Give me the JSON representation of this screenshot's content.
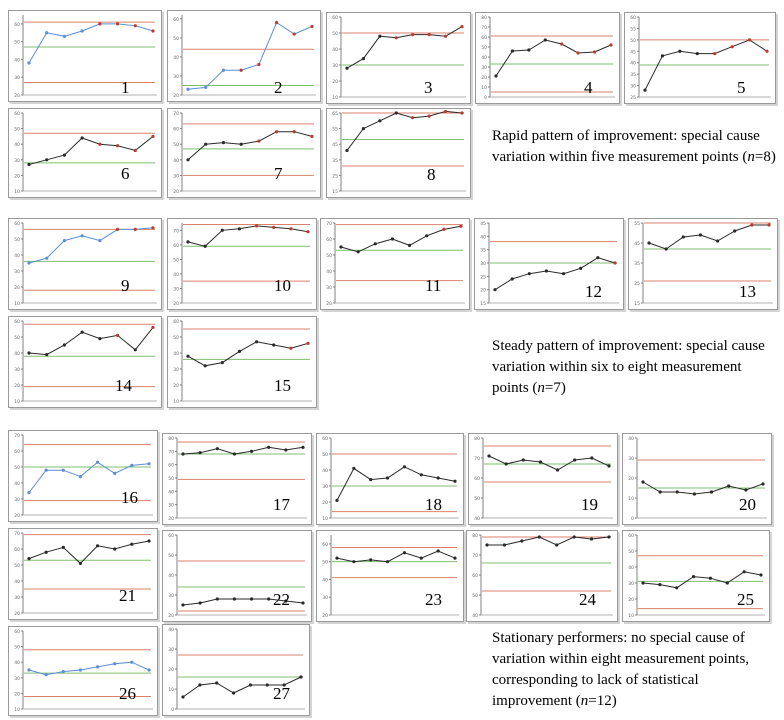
{
  "colors": {
    "upper_limit": "#d9826a",
    "center_line": "#7fbf6f",
    "lower_limit": "#d9826a",
    "series_blue": "#5a8fd6",
    "series_black": "#2a2a2a",
    "signal_point": "#c0392b"
  },
  "groups": [
    {
      "name": "rapid",
      "caption": {
        "text": "Rapid pattern of improvement: special cause variation within five measurement points (",
        "n_label": "n",
        "n_value": "=8)"
      }
    },
    {
      "name": "steady",
      "caption": {
        "text": "Steady pattern of improvement: special cause variation within six to eight measurement points (",
        "n_label": "n",
        "n_value": "=7)"
      }
    },
    {
      "name": "stationary",
      "caption": {
        "text": "Stationary performers: no special cause of variation within eight measurement points, corresponding to lack of statistical improvement (",
        "n_label": "n",
        "n_value": "=12)"
      }
    }
  ],
  "chart_data": [
    {
      "type": "line",
      "number": "1",
      "color": "blue",
      "ylim": [
        20,
        65
      ],
      "yticks": [
        "20",
        "30",
        "40",
        "50",
        "60"
      ],
      "ucl": 61,
      "cl": 47,
      "lcl": 27,
      "values": [
        38,
        55,
        53,
        56,
        60,
        60,
        59,
        56
      ],
      "signals": [
        4,
        5,
        6,
        7
      ]
    },
    {
      "type": "line",
      "number": "2",
      "color": "blue",
      "ylim": [
        20,
        62
      ],
      "yticks": [
        "20",
        "30",
        "40",
        "50",
        "60"
      ],
      "ucl": 44,
      "cl": 25,
      "lcl": null,
      "values": [
        23,
        24,
        33,
        33,
        36,
        58,
        52,
        56
      ],
      "signals": [
        3,
        4,
        5,
        6,
        7
      ]
    },
    {
      "type": "line",
      "number": "3",
      "color": "black",
      "ylim": [
        10,
        60
      ],
      "yticks": [
        "10",
        "20",
        "30",
        "40",
        "50",
        "60"
      ],
      "ucl": 50,
      "cl": 30,
      "lcl": null,
      "values": [
        28,
        34,
        48,
        47,
        49,
        49,
        48,
        54
      ],
      "signals": [
        3,
        4,
        5,
        6,
        7
      ]
    },
    {
      "type": "line",
      "number": "4",
      "color": "black",
      "ylim": [
        0,
        80
      ],
      "yticks": [
        "0",
        "10",
        "20",
        "30",
        "40",
        "50",
        "60",
        "70",
        "80"
      ],
      "ucl": 61,
      "cl": 33,
      "lcl": 5,
      "values": [
        21,
        46,
        47,
        57,
        53,
        44,
        45,
        52
      ],
      "signals": [
        4,
        5,
        6,
        7
      ]
    },
    {
      "type": "line",
      "number": "5",
      "color": "black",
      "ylim": [
        25,
        60
      ],
      "yticks": [
        "25",
        "30",
        "35",
        "40",
        "45",
        "50",
        "55",
        "60"
      ],
      "ucl": 50,
      "cl": 39,
      "lcl": null,
      "values": [
        28,
        43,
        45,
        44,
        44,
        47,
        50,
        45
      ],
      "signals": [
        4,
        5,
        6,
        7
      ]
    },
    {
      "type": "line",
      "number": "6",
      "color": "black",
      "ylim": [
        10,
        60
      ],
      "yticks": [
        "10",
        "20",
        "30",
        "40",
        "50",
        "60"
      ],
      "ucl": 47,
      "cl": 28,
      "lcl": null,
      "values": [
        27,
        30,
        33,
        44,
        40,
        39,
        36,
        45
      ],
      "signals": [
        4,
        5,
        6,
        7
      ]
    },
    {
      "type": "line",
      "number": "7",
      "color": "black",
      "ylim": [
        20,
        70
      ],
      "yticks": [
        "20",
        "30",
        "40",
        "50",
        "60",
        "70"
      ],
      "ucl": 63,
      "cl": 47,
      "lcl": 30,
      "values": [
        40,
        50,
        51,
        50,
        52,
        58,
        58,
        55
      ],
      "signals": [
        4,
        5,
        6,
        7
      ]
    },
    {
      "type": "line",
      "number": "8",
      "color": "black",
      "ylim": [
        15,
        65
      ],
      "yticks": [
        "15",
        "25",
        "35",
        "45",
        "55",
        "65"
      ],
      "ucl": 65,
      "cl": 48,
      "lcl": 31,
      "values": [
        41,
        55,
        60,
        65,
        62,
        63,
        66,
        65
      ],
      "signals": [
        4,
        5,
        6,
        7
      ]
    },
    {
      "type": "line",
      "number": "9",
      "color": "blue",
      "ylim": [
        10,
        60
      ],
      "yticks": [
        "10",
        "20",
        "30",
        "40",
        "50",
        "60"
      ],
      "ucl": 56,
      "cl": 36,
      "lcl": 18,
      "values": [
        35,
        38,
        49,
        52,
        49,
        56,
        56,
        57
      ],
      "signals": [
        5,
        6,
        7
      ]
    },
    {
      "type": "line",
      "number": "10",
      "color": "black",
      "ylim": [
        20,
        75
      ],
      "yticks": [
        "20",
        "30",
        "40",
        "50",
        "60",
        "70"
      ],
      "ucl": 74,
      "cl": 59,
      "lcl": 35,
      "values": [
        62,
        59,
        70,
        71,
        73,
        72,
        71,
        69
      ],
      "signals": [
        4,
        5,
        6,
        7
      ]
    },
    {
      "type": "line",
      "number": "11",
      "color": "black",
      "ylim": [
        20,
        70
      ],
      "yticks": [
        "20",
        "30",
        "40",
        "50",
        "60",
        "70"
      ],
      "ucl": 69,
      "cl": 53,
      "lcl": 34,
      "values": [
        55,
        52,
        57,
        60,
        56,
        62,
        66,
        68
      ],
      "signals": [
        6,
        7
      ]
    },
    {
      "type": "line",
      "number": "12",
      "color": "black",
      "ylim": [
        15,
        45
      ],
      "yticks": [
        "15",
        "20",
        "25",
        "30",
        "35",
        "40",
        "45"
      ],
      "ucl": 38,
      "cl": 30,
      "lcl": null,
      "values": [
        20,
        24,
        26,
        27,
        26,
        28,
        32,
        30
      ],
      "signals": [
        7
      ]
    },
    {
      "type": "line",
      "number": "13",
      "color": "black",
      "ylim": [
        15,
        55
      ],
      "yticks": [
        "15",
        "25",
        "35",
        "45",
        "55"
      ],
      "ucl": 55,
      "cl": 42,
      "lcl": 26,
      "values": [
        45,
        42,
        48,
        49,
        46,
        51,
        54,
        54
      ],
      "signals": [
        6,
        7
      ]
    },
    {
      "type": "line",
      "number": "14",
      "color": "black",
      "ylim": [
        10,
        60
      ],
      "yticks": [
        "10",
        "20",
        "30",
        "40",
        "50",
        "60"
      ],
      "ucl": 58,
      "cl": 38,
      "lcl": 19,
      "values": [
        40,
        39,
        45,
        53,
        49,
        51,
        42,
        56
      ],
      "signals": [
        5,
        7
      ]
    },
    {
      "type": "line",
      "number": "15",
      "color": "black",
      "ylim": [
        10,
        60
      ],
      "yticks": [
        "10",
        "20",
        "30",
        "40",
        "50",
        "60"
      ],
      "ucl": 55,
      "cl": 36,
      "lcl": null,
      "values": [
        38,
        32,
        34,
        41,
        47,
        45,
        43,
        46
      ],
      "signals": [
        6,
        7
      ]
    },
    {
      "type": "line",
      "number": "16",
      "color": "blue",
      "ylim": [
        20,
        70
      ],
      "yticks": [
        "20",
        "30",
        "40",
        "50",
        "60",
        "70"
      ],
      "ucl": 64,
      "cl": 50,
      "lcl": 29,
      "values": [
        34,
        48,
        48,
        44,
        53,
        46,
        51,
        52
      ],
      "signals": []
    },
    {
      "type": "line",
      "number": "17",
      "color": "black",
      "ylim": [
        20,
        80
      ],
      "yticks": [
        "20",
        "30",
        "40",
        "50",
        "60",
        "70",
        "80"
      ],
      "ucl": 77,
      "cl": 68,
      "lcl": 49,
      "values": [
        68,
        69,
        72,
        68,
        70,
        73,
        71,
        73
      ],
      "signals": []
    },
    {
      "type": "line",
      "number": "18",
      "color": "black",
      "ylim": [
        10,
        60
      ],
      "yticks": [
        "10",
        "20",
        "30",
        "40",
        "50",
        "60"
      ],
      "ucl": 50,
      "cl": 30,
      "lcl": 14,
      "values": [
        21,
        41,
        34,
        35,
        42,
        37,
        35,
        33
      ],
      "signals": []
    },
    {
      "type": "line",
      "number": "19",
      "color": "black",
      "ylim": [
        40,
        80
      ],
      "yticks": [
        "40",
        "50",
        "60",
        "70",
        "80"
      ],
      "ucl": 76,
      "cl": 67,
      "lcl": 58,
      "values": [
        71,
        67,
        69,
        68,
        64,
        69,
        70,
        66
      ],
      "signals": []
    },
    {
      "type": "line",
      "number": "20",
      "color": "black",
      "ylim": [
        0,
        40
      ],
      "yticks": [
        "0",
        "10",
        "20",
        "30",
        "40"
      ],
      "ucl": 29,
      "cl": 15,
      "lcl": null,
      "values": [
        18,
        13,
        13,
        12,
        13,
        16,
        14,
        17
      ],
      "signals": []
    },
    {
      "type": "line",
      "number": "21",
      "color": "black",
      "ylim": [
        20,
        70
      ],
      "yticks": [
        "20",
        "30",
        "40",
        "50",
        "60",
        "70"
      ],
      "ucl": 69,
      "cl": 53,
      "lcl": 35,
      "values": [
        54,
        58,
        61,
        51,
        62,
        60,
        63,
        65
      ],
      "signals": []
    },
    {
      "type": "line",
      "number": "22",
      "color": "black",
      "ylim": [
        20,
        60
      ],
      "yticks": [
        "20",
        "30",
        "40",
        "50",
        "60"
      ],
      "ucl": 47,
      "cl": 34,
      "lcl": 22,
      "values": [
        25,
        26,
        28,
        28,
        28,
        28,
        27,
        26
      ],
      "signals": []
    },
    {
      "type": "line",
      "number": "23",
      "color": "black",
      "ylim": [
        20,
        65
      ],
      "yticks": [
        "20",
        "30",
        "40",
        "50",
        "60"
      ],
      "ucl": 58,
      "cl": 50,
      "lcl": 41,
      "values": [
        52,
        50,
        51,
        50,
        55,
        52,
        56,
        52
      ],
      "signals": []
    },
    {
      "type": "line",
      "number": "24",
      "color": "black",
      "ylim": [
        40,
        80
      ],
      "yticks": [
        "40",
        "50",
        "60",
        "70",
        "80"
      ],
      "ucl": 79,
      "cl": 66,
      "lcl": 52,
      "values": [
        75,
        75,
        77,
        79,
        75,
        79,
        78,
        79
      ],
      "signals": []
    },
    {
      "type": "line",
      "number": "25",
      "color": "black",
      "ylim": [
        10,
        60
      ],
      "yticks": [
        "10",
        "20",
        "30",
        "40",
        "50",
        "60"
      ],
      "ucl": 47,
      "cl": 31,
      "lcl": 14,
      "values": [
        30,
        29,
        27,
        34,
        33,
        30,
        37,
        35
      ],
      "signals": []
    },
    {
      "type": "line",
      "number": "26",
      "color": "blue",
      "ylim": [
        10,
        60
      ],
      "yticks": [
        "10",
        "20",
        "30",
        "40",
        "50",
        "60"
      ],
      "ucl": 48,
      "cl": 33,
      "lcl": 18,
      "values": [
        35,
        32,
        34,
        35,
        37,
        39,
        40,
        35
      ],
      "signals": []
    },
    {
      "type": "line",
      "number": "27",
      "color": "black",
      "ylim": [
        0,
        40
      ],
      "yticks": [
        "0",
        "10",
        "20",
        "30",
        "40"
      ],
      "ucl": 27,
      "cl": 16,
      "lcl": null,
      "values": [
        6,
        12,
        13,
        8,
        12,
        12,
        12,
        16
      ],
      "signals": []
    }
  ]
}
